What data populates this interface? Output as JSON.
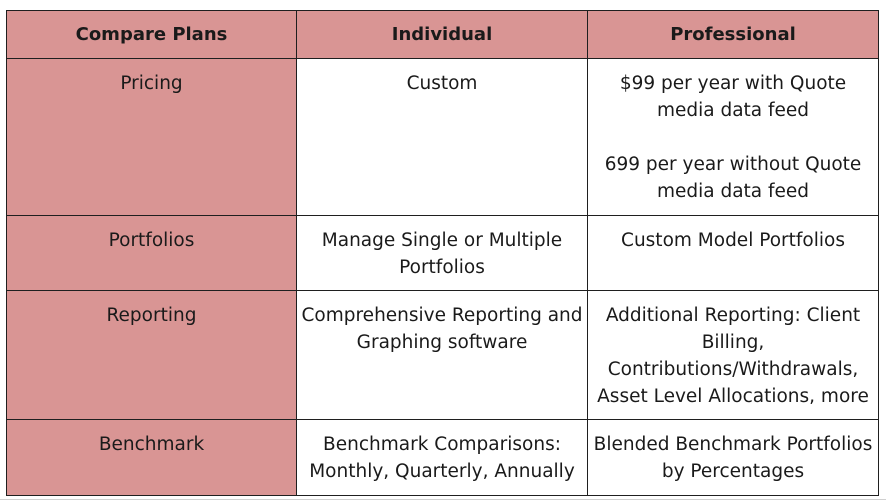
{
  "table": {
    "headers": [
      "Compare Plans",
      "Individual",
      "Professional"
    ],
    "rows": [
      {
        "label": "Pricing",
        "individual": "Custom",
        "professional": [
          "$99 per year with Quote media data feed",
          "699 per year without Quote media data feed"
        ]
      },
      {
        "label": "Portfolios",
        "individual": "Manage Single or Multiple Portfolios",
        "professional": [
          "Custom Model Portfolios"
        ]
      },
      {
        "label": "Reporting",
        "individual": "Comprehensive Reporting and Graphing software",
        "professional": [
          "Additional Reporting: Client Billing, Contributions/Withdrawals, Asset Level Allocations, more"
        ]
      },
      {
        "label": "Benchmark",
        "individual": "Benchmark Comparisons: Monthly, Quarterly, Annually",
        "professional": [
          "Blended Benchmark Portfolios by Percentages"
        ]
      }
    ]
  },
  "colors": {
    "header_bg": "#d99594",
    "label_bg": "#d99594",
    "border": "#1f1f1f"
  }
}
